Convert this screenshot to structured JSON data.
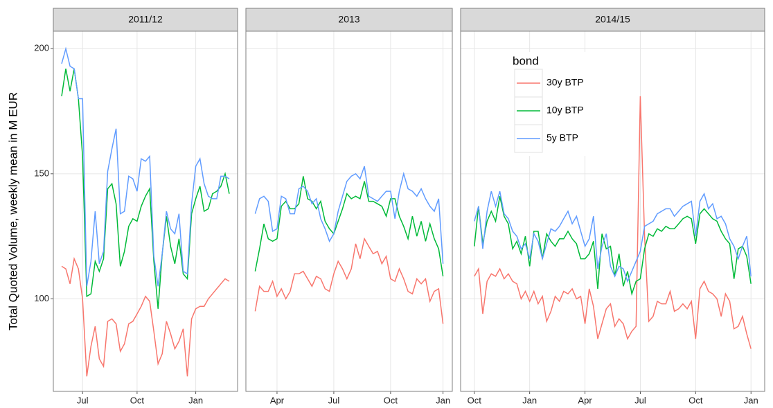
{
  "chart_data": {
    "type": "line",
    "y_label": "Total Quoted Volume, weekly mean in M EUR",
    "legend_title": "bond",
    "ylim": [
      63,
      207
    ],
    "yticks": [
      100,
      150,
      200
    ],
    "grid": true,
    "legend_position": "top-right",
    "facets": [
      {
        "title": "2011/12",
        "categories": [
          null,
          null,
          null,
          null,
          null,
          "Jul",
          null,
          null,
          null,
          null,
          null,
          null,
          null,
          null,
          null,
          null,
          null,
          null,
          "Oct",
          null,
          null,
          null,
          null,
          null,
          null,
          null,
          null,
          null,
          null,
          null,
          null,
          null,
          "Jan",
          null,
          null,
          null,
          null,
          null,
          null,
          null,
          null
        ]
      },
      {
        "title": "2013",
        "categories": [
          null,
          null,
          null,
          null,
          null,
          "Apr",
          null,
          null,
          null,
          null,
          null,
          null,
          null,
          null,
          null,
          null,
          null,
          null,
          "Jul",
          null,
          null,
          null,
          null,
          null,
          null,
          null,
          null,
          null,
          null,
          null,
          null,
          "Oct",
          null,
          null,
          null,
          null,
          null,
          null,
          null,
          null,
          null,
          null,
          null,
          "Jan"
        ]
      },
      {
        "title": "2014/15",
        "categories": [
          "Oct",
          null,
          null,
          null,
          null,
          null,
          null,
          null,
          null,
          null,
          null,
          null,
          null,
          "Jan",
          null,
          null,
          null,
          null,
          null,
          null,
          null,
          null,
          null,
          null,
          null,
          null,
          "Apr",
          null,
          null,
          null,
          null,
          null,
          null,
          null,
          null,
          null,
          null,
          null,
          null,
          "Jul",
          null,
          null,
          null,
          null,
          null,
          null,
          null,
          null,
          null,
          null,
          null,
          null,
          "Oct",
          null,
          null,
          null,
          null,
          null,
          null,
          null,
          null,
          null,
          null,
          null,
          null,
          "Jan"
        ]
      }
    ],
    "series": [
      {
        "name": "30y BTP",
        "color": "#f8766d",
        "values": [
          [
            113,
            112,
            106,
            116,
            112,
            100,
            69,
            81,
            89,
            76,
            73,
            91,
            92,
            90,
            79,
            82,
            90,
            91,
            94,
            97,
            101,
            99,
            87,
            74,
            78,
            91,
            86,
            80,
            83,
            88,
            69,
            92,
            96,
            97,
            97,
            100,
            102,
            104,
            106,
            108,
            107
          ],
          [
            95,
            105,
            103,
            103,
            107,
            101,
            104,
            100,
            103,
            110,
            110,
            111,
            108,
            105,
            109,
            108,
            104,
            103,
            110,
            115,
            112,
            108,
            112,
            122,
            116,
            124,
            121,
            118,
            119,
            114,
            117,
            108,
            107,
            112,
            108,
            103,
            102,
            108,
            106,
            108,
            99,
            103,
            104,
            90
          ],
          [
            109,
            112,
            94,
            107,
            110,
            109,
            112,
            108,
            110,
            107,
            106,
            100,
            103,
            99,
            103,
            98,
            101,
            91,
            95,
            101,
            99,
            103,
            102,
            104,
            100,
            101,
            90,
            104,
            97,
            84,
            90,
            96,
            98,
            89,
            92,
            90,
            84,
            87,
            89,
            181,
            125,
            91,
            93,
            99,
            98,
            98,
            103,
            95,
            96,
            98,
            96,
            99,
            84,
            104,
            107,
            103,
            102,
            100,
            93,
            102,
            99,
            88,
            89,
            93,
            86,
            80
          ]
        ]
      },
      {
        "name": "10y BTP",
        "color": "#00ba38",
        "values": [
          [
            181,
            192,
            183,
            192,
            180,
            157,
            101,
            102,
            115,
            111,
            116,
            144,
            146,
            138,
            113,
            119,
            129,
            132,
            131,
            137,
            141,
            144,
            115,
            96,
            118,
            133,
            121,
            114,
            124,
            110,
            108,
            134,
            140,
            145,
            135,
            136,
            142,
            143,
            145,
            150,
            142
          ],
          [
            111,
            120,
            130,
            124,
            123,
            124,
            137,
            139,
            136,
            136,
            138,
            149,
            140,
            139,
            136,
            139,
            131,
            128,
            126,
            131,
            136,
            142,
            140,
            141,
            140,
            147,
            139,
            139,
            138,
            137,
            133,
            140,
            140,
            133,
            129,
            124,
            133,
            125,
            131,
            123,
            130,
            124,
            120,
            109
          ],
          [
            121,
            137,
            122,
            131,
            135,
            131,
            141,
            133,
            130,
            120,
            123,
            118,
            125,
            113,
            127,
            127,
            116,
            126,
            123,
            121,
            124,
            124,
            127,
            124,
            122,
            116,
            116,
            118,
            123,
            104,
            126,
            120,
            121,
            109,
            118,
            105,
            111,
            102,
            107,
            108,
            120,
            126,
            125,
            128,
            127,
            129,
            128,
            128,
            130,
            132,
            133,
            132,
            122,
            134,
            136,
            134,
            132,
            131,
            127,
            124,
            122,
            108,
            120,
            121,
            117,
            106
          ]
        ]
      },
      {
        "name": "5y BTP",
        "color": "#619cff",
        "values": [
          [
            194,
            200,
            193,
            192,
            180,
            180,
            105,
            115,
            135,
            114,
            119,
            151,
            160,
            168,
            134,
            135,
            149,
            148,
            143,
            156,
            155,
            157,
            117,
            105,
            118,
            135,
            128,
            126,
            134,
            111,
            110,
            138,
            153,
            156,
            146,
            141,
            140,
            140,
            149,
            149,
            148
          ],
          [
            134,
            140,
            141,
            139,
            127,
            128,
            141,
            140,
            134,
            134,
            144,
            145,
            143,
            138,
            140,
            132,
            128,
            123,
            126,
            135,
            141,
            147,
            149,
            150,
            148,
            153,
            141,
            140,
            139,
            141,
            143,
            143,
            132,
            143,
            150,
            144,
            143,
            141,
            144,
            140,
            137,
            135,
            140,
            114
          ],
          [
            131,
            137,
            120,
            135,
            143,
            137,
            143,
            134,
            132,
            127,
            125,
            120,
            122,
            116,
            126,
            123,
            116,
            122,
            128,
            127,
            129,
            132,
            135,
            130,
            133,
            127,
            121,
            124,
            133,
            112,
            121,
            126,
            113,
            109,
            113,
            112,
            107,
            111,
            115,
            119,
            129,
            130,
            131,
            134,
            135,
            136,
            136,
            133,
            135,
            137,
            138,
            139,
            125,
            139,
            142,
            136,
            138,
            132,
            133,
            130,
            124,
            121,
            116,
            121,
            125,
            109
          ]
        ]
      }
    ]
  }
}
